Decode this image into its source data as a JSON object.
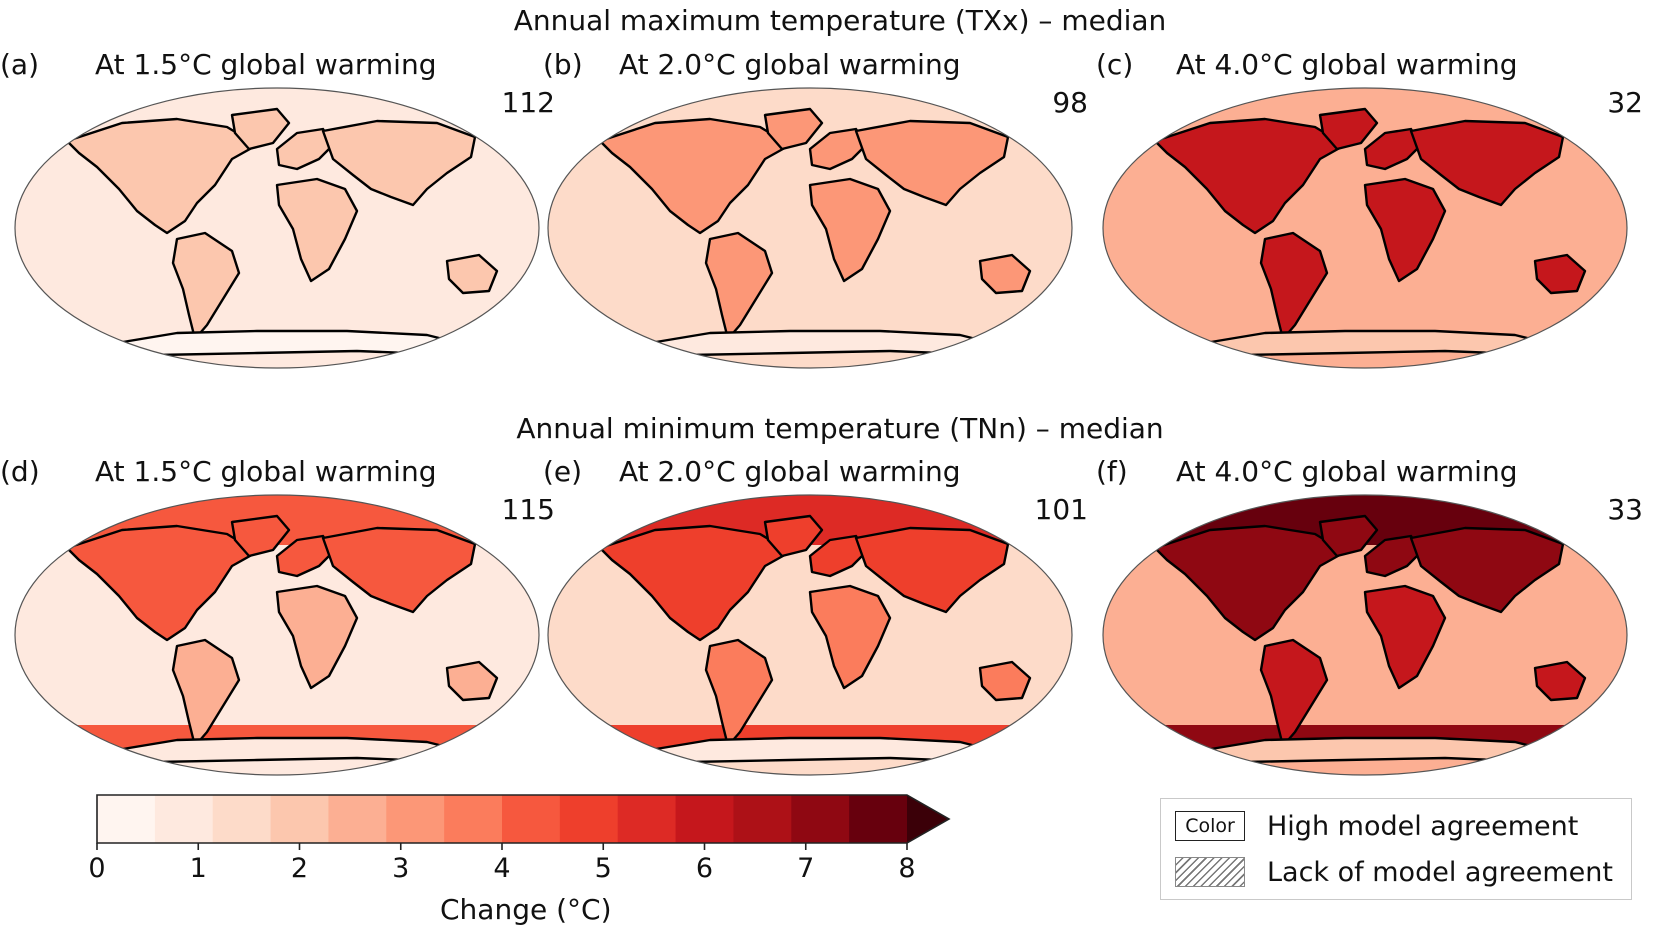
{
  "rows": [
    {
      "title": "Annual maximum temperature (TXx) – median",
      "panels": [
        {
          "letter": "(a)",
          "title": "At 1.5°C global warming",
          "count": "112",
          "intensity": 0.15
        },
        {
          "letter": "(b)",
          "title": "At 2.0°C global warming",
          "count": "98",
          "intensity": 0.28
        },
        {
          "letter": "(c)",
          "title": "At 4.0°C global warming",
          "count": "32",
          "intensity": 0.62
        }
      ]
    },
    {
      "title": "Annual minimum temperature (TNn) – median",
      "panels": [
        {
          "letter": "(d)",
          "title": "At 1.5°C global warming",
          "count": "115",
          "intensity": 0.2
        },
        {
          "letter": "(e)",
          "title": "At 2.0°C global warming",
          "count": "101",
          "intensity": 0.32
        },
        {
          "letter": "(f)",
          "title": "At 4.0°C global warming",
          "count": "33",
          "intensity": 0.62
        }
      ]
    }
  ],
  "colorbar": {
    "label": "Change (°C)",
    "ticks": [
      "0",
      "1",
      "2",
      "3",
      "4",
      "5",
      "6",
      "7",
      "8"
    ],
    "range": [
      0,
      8
    ],
    "extend": "max",
    "colors": [
      "#fff5f0",
      "#fee9df",
      "#fddbc9",
      "#fcc7ae",
      "#fcaf93",
      "#fc9777",
      "#fb7c5c",
      "#f6583e",
      "#ee3f2c",
      "#dd2a25",
      "#c5171c",
      "#ad1117",
      "#8f0812",
      "#67000d"
    ]
  },
  "legend": {
    "swatch_label": "Color",
    "high": "High model agreement",
    "lack": "Lack of model agreement"
  }
}
